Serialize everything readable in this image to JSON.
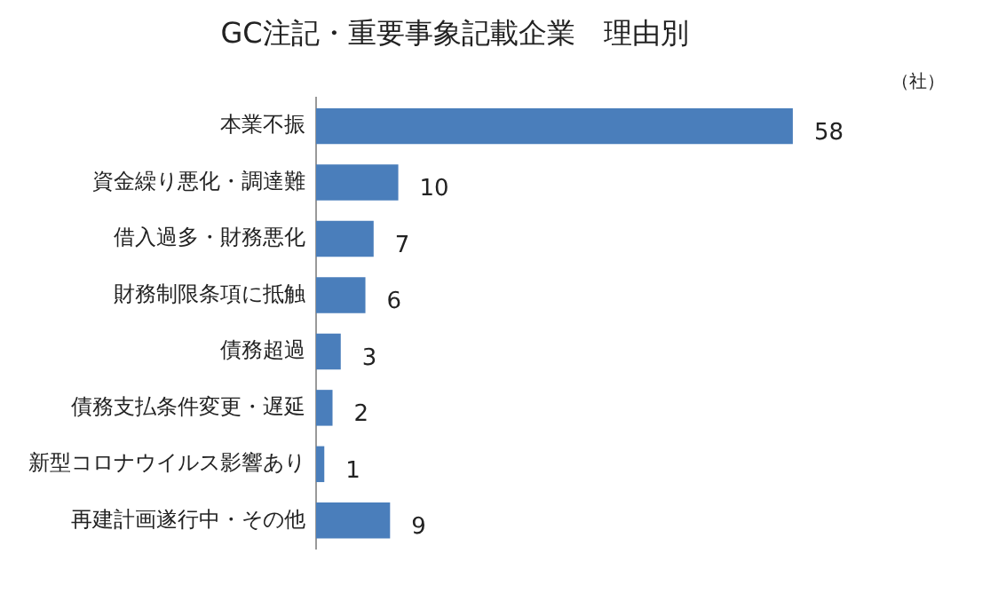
{
  "chart_data": {
    "type": "bar",
    "orientation": "horizontal",
    "title": "GC注記・重要事象記載企業　理由別",
    "categories": [
      "本業不振",
      "資金繰り悪化・調達難",
      "借入過多・財務悪化",
      "財務制限条項に抵触",
      "債務超過",
      "債務支払条件変更・遅延",
      "新型コロナウイルス影響あり",
      "再建計画遂行中・その他"
    ],
    "values": [
      58,
      10,
      7,
      6,
      3,
      2,
      1,
      9
    ],
    "color": "#4a7ebb",
    "data_labels": true,
    "legend": false,
    "annotations": [
      "（社）"
    ]
  }
}
